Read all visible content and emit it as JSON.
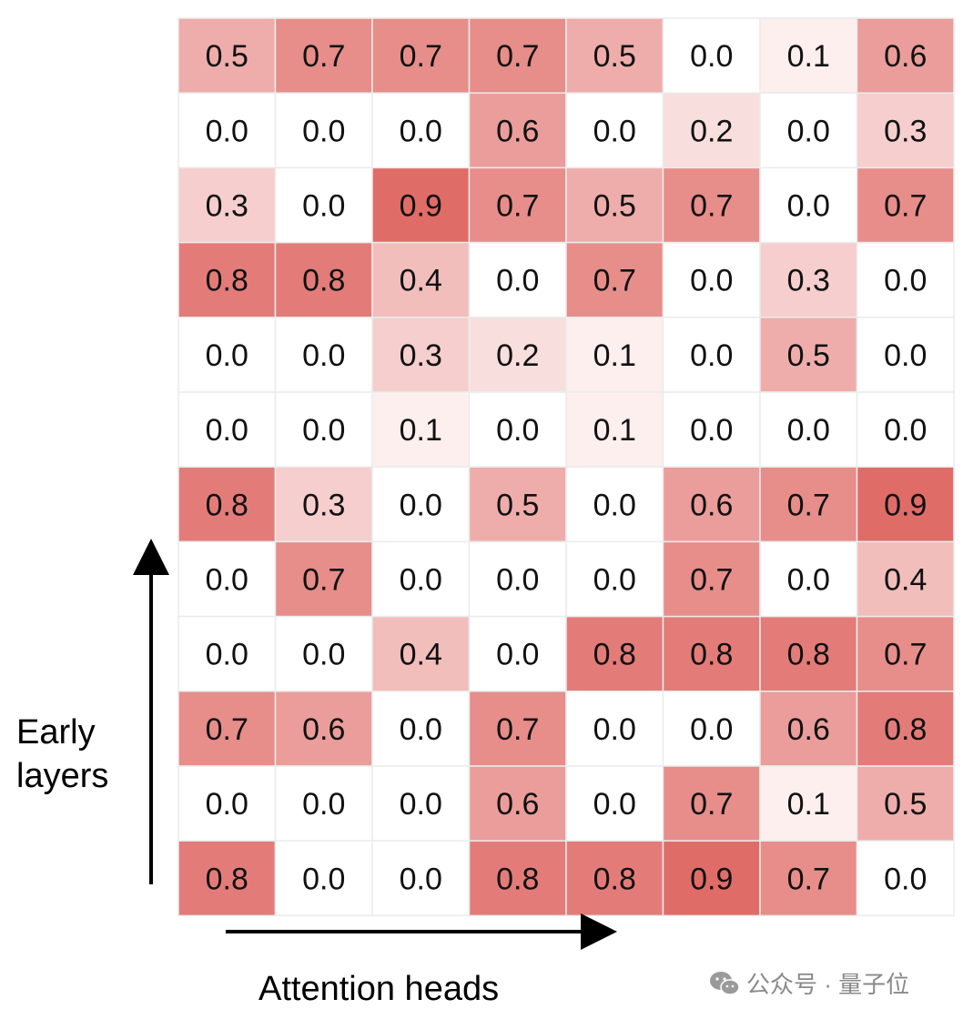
{
  "chart_data": {
    "type": "heatmap",
    "title": "",
    "xlabel": "Attention heads",
    "ylabel": "Early layers",
    "color_low": "#ffffff",
    "color_high": "#e06c68",
    "value_range": [
      0.0,
      0.9
    ],
    "rows": [
      [
        "0.5",
        "0.7",
        "0.7",
        "0.7",
        "0.5",
        "0.0",
        "0.1",
        "0.6"
      ],
      [
        "0.0",
        "0.0",
        "0.0",
        "0.6",
        "0.0",
        "0.2",
        "0.0",
        "0.3"
      ],
      [
        "0.3",
        "0.0",
        "0.9",
        "0.7",
        "0.5",
        "0.7",
        "0.0",
        "0.7"
      ],
      [
        "0.8",
        "0.8",
        "0.4",
        "0.0",
        "0.7",
        "0.0",
        "0.3",
        "0.0"
      ],
      [
        "0.0",
        "0.0",
        "0.3",
        "0.2",
        "0.1",
        "0.0",
        "0.5",
        "0.0"
      ],
      [
        "0.0",
        "0.0",
        "0.1",
        "0.0",
        "0.1",
        "0.0",
        "0.0",
        "0.0"
      ],
      [
        "0.8",
        "0.3",
        "0.0",
        "0.5",
        "0.0",
        "0.6",
        "0.7",
        "0.9"
      ],
      [
        "0.0",
        "0.7",
        "0.0",
        "0.0",
        "0.0",
        "0.7",
        "0.0",
        "0.4"
      ],
      [
        "0.0",
        "0.0",
        "0.4",
        "0.0",
        "0.8",
        "0.8",
        "0.8",
        "0.7"
      ],
      [
        "0.7",
        "0.6",
        "0.0",
        "0.7",
        "0.0",
        "0.0",
        "0.6",
        "0.8"
      ],
      [
        "0.0",
        "0.0",
        "0.0",
        "0.6",
        "0.0",
        "0.7",
        "0.1",
        "0.5"
      ],
      [
        "0.8",
        "0.0",
        "0.0",
        "0.8",
        "0.8",
        "0.9",
        "0.7",
        "0.0"
      ]
    ]
  },
  "watermark": {
    "text": "公众号 · 量子位",
    "icon": "wechat-icon"
  }
}
